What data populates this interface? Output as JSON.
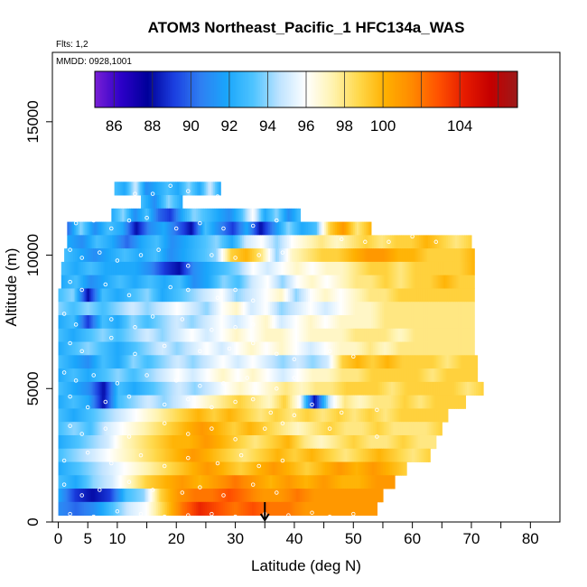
{
  "chart_data": {
    "type": "heatmap",
    "title": "ATOM3 Northeast_Pacific_1 HFC134a_WAS",
    "flights_label": "Flts: 1,2",
    "dates_label": "MMDD: 0928,1001",
    "xlabel": "Latitude (deg N)",
    "ylabel": "Altitude (m)",
    "xlim": [
      -1,
      85
    ],
    "ylim": [
      0,
      17600
    ],
    "x_ticks": [
      0,
      5,
      10,
      20,
      30,
      40,
      50,
      60,
      70,
      80
    ],
    "x_minor_ticks": [
      15,
      25,
      35,
      45,
      55,
      65,
      75
    ],
    "y_ticks": [
      0,
      5000,
      10000,
      15000
    ],
    "colorbar": {
      "min": 85,
      "max": 107,
      "tick_values": [
        86,
        88,
        90,
        92,
        94,
        96,
        98,
        100,
        104
      ],
      "colors": [
        "#7a1fd6",
        "#2c00c8",
        "#00009a",
        "#1b3fe0",
        "#2f7ff2",
        "#1aa6fb",
        "#4fc4ff",
        "#bfe3ff",
        "#ffffff",
        "#fff3b0",
        "#ffd84a",
        "#ffb000",
        "#ff8a00",
        "#ff5200",
        "#e61b00",
        "#c40000",
        "#9c1b1b"
      ]
    },
    "flight_track_arrow_lat": 35,
    "altitude_bands": [
      {
        "alt": 12500,
        "lat_min": 9.5,
        "lat_max": 27.5,
        "values": [
          93,
          92,
          95,
          91,
          92,
          93,
          92,
          94,
          92,
          95,
          92
        ]
      },
      {
        "alt": 12000,
        "lat_min": 14,
        "lat_max": 21,
        "values": [
          93,
          91,
          94,
          92
        ]
      },
      {
        "alt": 11500,
        "lat_min": 9,
        "lat_max": 41,
        "values": [
          92,
          94,
          91,
          93,
          90,
          89,
          92,
          94,
          93,
          92,
          91,
          93,
          96,
          92,
          94,
          91,
          93
        ]
      },
      {
        "alt": 11000,
        "lat_min": 1.5,
        "lat_max": 53,
        "values": [
          90,
          94,
          91,
          93,
          92,
          88,
          91,
          92,
          90,
          88,
          93,
          91,
          89,
          92,
          88,
          91,
          94,
          92,
          93,
          99,
          101,
          98,
          100
        ]
      },
      {
        "alt": 10500,
        "lat_min": 1.5,
        "lat_max": 70,
        "values": [
          92,
          91,
          93,
          92,
          90,
          92,
          93,
          91,
          92,
          93,
          94,
          92,
          95,
          96,
          94,
          96,
          97,
          98,
          97,
          98,
          99,
          98,
          99,
          99,
          100,
          99,
          98,
          99
        ]
      },
      {
        "alt": 10000,
        "lat_min": 1,
        "lat_max": 70.5,
        "values": [
          93,
          92,
          91,
          92,
          93,
          92,
          93,
          91,
          92,
          93,
          94,
          99,
          100,
          98,
          94,
          97,
          98,
          99,
          99,
          100,
          101,
          101,
          100,
          100,
          99,
          99,
          99,
          100
        ]
      },
      {
        "alt": 9500,
        "lat_min": 0.5,
        "lat_max": 70.5,
        "values": [
          93,
          92,
          93,
          92,
          92,
          92,
          91,
          89,
          88,
          91,
          92,
          93,
          94,
          96,
          95,
          96,
          97,
          96,
          97,
          97,
          98,
          99,
          99,
          98,
          99,
          99,
          99,
          99,
          100
        ]
      },
      {
        "alt": 9000,
        "lat_min": 0.5,
        "lat_max": 70.5,
        "values": [
          92,
          93,
          91,
          92,
          93,
          92,
          93,
          92,
          93,
          91,
          92,
          94,
          93,
          95,
          96,
          94,
          96,
          97,
          96,
          97,
          98,
          98,
          99,
          98,
          99,
          99,
          100,
          99,
          99
        ]
      },
      {
        "alt": 8500,
        "lat_min": 0,
        "lat_max": 70.5,
        "values": [
          93,
          94,
          88,
          93,
          92,
          93,
          94,
          92,
          93,
          94,
          95,
          96,
          94,
          95,
          96,
          97,
          94,
          96,
          97,
          96,
          97,
          98,
          98,
          99,
          99,
          99,
          99,
          99,
          99
        ]
      },
      {
        "alt": 8000,
        "lat_min": 0,
        "lat_max": 70.5,
        "values": [
          94,
          93,
          94,
          93,
          94,
          95,
          94,
          95,
          96,
          95,
          94,
          96,
          97,
          95,
          96,
          94,
          95,
          96,
          95,
          96,
          97,
          97,
          98,
          98,
          98,
          98,
          98,
          98,
          98
        ]
      },
      {
        "alt": 7500,
        "lat_min": 0,
        "lat_max": 70.5,
        "values": [
          92,
          93,
          89,
          93,
          92,
          94,
          93,
          94,
          95,
          94,
          95,
          96,
          95,
          96,
          97,
          95,
          96,
          97,
          96,
          97,
          97,
          97,
          98,
          98,
          98,
          98,
          98,
          98,
          98
        ]
      },
      {
        "alt": 7000,
        "lat_min": 0,
        "lat_max": 70.5,
        "values": [
          93,
          92,
          93,
          94,
          93,
          94,
          95,
          94,
          95,
          96,
          95,
          96,
          97,
          96,
          97,
          97,
          96,
          97,
          97,
          97,
          98,
          98,
          98,
          97,
          98,
          98,
          98,
          98,
          98
        ]
      },
      {
        "alt": 6500,
        "lat_min": 0,
        "lat_max": 70.5,
        "values": [
          92,
          93,
          94,
          93,
          92,
          93,
          94,
          95,
          94,
          95,
          96,
          95,
          96,
          97,
          96,
          97,
          96,
          95,
          96,
          97,
          97,
          98,
          97,
          98,
          98,
          98,
          98,
          98,
          98
        ]
      },
      {
        "alt": 6000,
        "lat_min": 0,
        "lat_max": 71,
        "values": [
          93,
          92,
          91,
          93,
          92,
          94,
          93,
          94,
          95,
          94,
          95,
          96,
          95,
          96,
          95,
          94,
          95,
          94,
          95,
          99,
          100,
          99,
          100,
          99,
          99,
          99,
          98,
          99,
          99
        ]
      },
      {
        "alt": 5500,
        "lat_min": 0,
        "lat_max": 71,
        "values": [
          92,
          93,
          92,
          93,
          94,
          93,
          94,
          95,
          96,
          95,
          96,
          97,
          96,
          97,
          96,
          95,
          96,
          97,
          97,
          98,
          98,
          99,
          99,
          99,
          99,
          98,
          99,
          99,
          99
        ]
      },
      {
        "alt": 5000,
        "lat_min": 0,
        "lat_max": 72,
        "values": [
          93,
          92,
          91,
          88,
          93,
          92,
          93,
          94,
          95,
          94,
          95,
          96,
          97,
          96,
          97,
          98,
          97,
          98,
          98,
          99,
          99,
          99,
          98,
          99,
          99,
          99,
          99,
          98,
          99
        ]
      },
      {
        "alt": 4500,
        "lat_min": 0,
        "lat_max": 69,
        "values": [
          92,
          93,
          92,
          88,
          93,
          94,
          95,
          94,
          95,
          96,
          97,
          98,
          99,
          98,
          97,
          99,
          96,
          88,
          95,
          98,
          97,
          98,
          98,
          99,
          98,
          99,
          99,
          99
        ]
      },
      {
        "alt": 4000,
        "lat_min": 0,
        "lat_max": 66,
        "values": [
          93,
          92,
          93,
          94,
          95,
          96,
          97,
          98,
          99,
          100,
          99,
          100,
          99,
          98,
          99,
          98,
          99,
          98,
          99,
          98,
          99,
          98,
          99,
          99,
          99,
          99
        ]
      },
      {
        "alt": 3500,
        "lat_min": 0,
        "lat_max": 65,
        "values": [
          93,
          94,
          93,
          95,
          96,
          97,
          98,
          99,
          100,
          101,
          100,
          99,
          100,
          99,
          98,
          97,
          98,
          99,
          98,
          98,
          99,
          98,
          98,
          98,
          99
        ]
      },
      {
        "alt": 3000,
        "lat_min": 0,
        "lat_max": 64,
        "values": [
          92,
          93,
          94,
          95,
          97,
          98,
          99,
          100,
          100,
          101,
          100,
          99,
          98,
          99,
          100,
          98,
          97,
          98,
          99,
          98,
          98,
          99,
          98,
          98
        ]
      },
      {
        "alt": 2500,
        "lat_min": 0,
        "lat_max": 63,
        "values": [
          93,
          94,
          95,
          96,
          97,
          98,
          99,
          100,
          101,
          100,
          99,
          98,
          99,
          100,
          99,
          100,
          99,
          98,
          99,
          100,
          99,
          98,
          99
        ]
      },
      {
        "alt": 2000,
        "lat_min": 0,
        "lat_max": 59,
        "values": [
          92,
          93,
          94,
          95,
          96,
          97,
          98,
          99,
          100,
          101,
          100,
          99,
          100,
          101,
          100,
          99,
          100,
          101,
          100,
          101,
          100,
          99
        ]
      },
      {
        "alt": 1500,
        "lat_min": 0,
        "lat_max": 57,
        "values": [
          93,
          92,
          94,
          95,
          97,
          99,
          100,
          101,
          100,
          101,
          102,
          101,
          100,
          101,
          100,
          101,
          100,
          100,
          101,
          101
        ]
      },
      {
        "alt": 1000,
        "lat_min": 0,
        "lat_max": 55,
        "values": [
          92,
          89,
          88,
          89,
          93,
          94,
          99,
          101,
          102,
          102,
          103,
          102,
          101,
          101,
          102,
          101,
          101,
          101,
          101,
          101
        ]
      },
      {
        "alt": 500,
        "lat_min": 0,
        "lat_max": 54,
        "values": [
          91,
          90,
          91,
          93,
          95,
          96,
          99,
          102,
          104,
          103,
          102,
          103,
          102,
          102,
          101,
          101,
          101,
          101,
          101
        ]
      }
    ],
    "sample_points": [
      [
        13,
        12300
      ],
      [
        16,
        12300
      ],
      [
        19,
        12600
      ],
      [
        22,
        12400
      ],
      [
        27,
        12200
      ],
      [
        31,
        12300
      ],
      [
        35,
        12100
      ],
      [
        3,
        11200
      ],
      [
        6,
        11300
      ],
      [
        9,
        11000
      ],
      [
        12,
        11300
      ],
      [
        15,
        11400
      ],
      [
        20,
        11000
      ],
      [
        24,
        11200
      ],
      [
        28,
        11000
      ],
      [
        33,
        11100
      ],
      [
        37,
        11300
      ],
      [
        48,
        10600
      ],
      [
        52,
        10500
      ],
      [
        56,
        10500
      ],
      [
        60,
        10700
      ],
      [
        64,
        10500
      ],
      [
        2,
        10200
      ],
      [
        4,
        9900
      ],
      [
        7,
        10100
      ],
      [
        10,
        9800
      ],
      [
        14,
        10000
      ],
      [
        17,
        10200
      ],
      [
        22,
        9600
      ],
      [
        26,
        10000
      ],
      [
        30,
        9900
      ],
      [
        34,
        10000
      ],
      [
        38,
        10100
      ],
      [
        2,
        9000
      ],
      [
        4,
        8700
      ],
      [
        8,
        8900
      ],
      [
        12,
        8500
      ],
      [
        19,
        8800
      ],
      [
        22,
        8700
      ],
      [
        27,
        8400
      ],
      [
        30,
        8700
      ],
      [
        33,
        8300
      ],
      [
        1,
        7800
      ],
      [
        3,
        7400
      ],
      [
        9,
        7600
      ],
      [
        13,
        7300
      ],
      [
        16,
        7700
      ],
      [
        21,
        7600
      ],
      [
        26,
        7200
      ],
      [
        30,
        7300
      ],
      [
        33,
        7400
      ],
      [
        2,
        6700
      ],
      [
        4,
        6400
      ],
      [
        9,
        6900
      ],
      [
        13,
        6300
      ],
      [
        18,
        6600
      ],
      [
        24,
        6400
      ],
      [
        29,
        6500
      ],
      [
        33,
        6700
      ],
      [
        37,
        6300
      ],
      [
        40,
        6100
      ],
      [
        46,
        6400
      ],
      [
        50,
        6200
      ],
      [
        1,
        5600
      ],
      [
        3,
        5300
      ],
      [
        6,
        5500
      ],
      [
        10,
        5200
      ],
      [
        15,
        5500
      ],
      [
        20,
        5300
      ],
      [
        24,
        5100
      ],
      [
        28,
        5200
      ],
      [
        32,
        5400
      ],
      [
        37,
        5000
      ],
      [
        40,
        5400
      ],
      [
        2,
        4700
      ],
      [
        5,
        4300
      ],
      [
        8,
        4500
      ],
      [
        12,
        4700
      ],
      [
        18,
        4400
      ],
      [
        22,
        4600
      ],
      [
        26,
        4300
      ],
      [
        30,
        4500
      ],
      [
        33,
        4600
      ],
      [
        36,
        4100
      ],
      [
        40,
        4000
      ],
      [
        43,
        4400
      ],
      [
        48,
        4100
      ],
      [
        54,
        4200
      ],
      [
        2,
        3600
      ],
      [
        4,
        3300
      ],
      [
        8,
        3500
      ],
      [
        12,
        3200
      ],
      [
        18,
        3700
      ],
      [
        22,
        3300
      ],
      [
        26,
        3500
      ],
      [
        30,
        3100
      ],
      [
        35,
        3500
      ],
      [
        38,
        3700
      ],
      [
        46,
        3500
      ],
      [
        54,
        3200
      ],
      [
        1,
        2300
      ],
      [
        5,
        2600
      ],
      [
        9,
        2200
      ],
      [
        14,
        2500
      ],
      [
        18,
        2100
      ],
      [
        22,
        2400
      ],
      [
        27,
        2200
      ],
      [
        31,
        2500
      ],
      [
        34,
        2100
      ],
      [
        38,
        2300
      ],
      [
        1,
        1400
      ],
      [
        4,
        1000
      ],
      [
        7,
        1200
      ],
      [
        12,
        1500
      ],
      [
        16,
        1200
      ],
      [
        21,
        1100
      ],
      [
        24,
        1300
      ],
      [
        28,
        1000
      ],
      [
        33,
        1400
      ],
      [
        37,
        1100
      ],
      [
        2,
        300
      ],
      [
        6,
        200
      ],
      [
        10,
        400
      ],
      [
        14,
        300
      ],
      [
        18,
        200
      ],
      [
        22,
        250
      ],
      [
        26,
        300
      ],
      [
        30,
        200
      ],
      [
        35,
        300
      ],
      [
        39,
        250
      ],
      [
        43,
        350
      ],
      [
        46,
        200
      ],
      [
        50,
        300
      ]
    ]
  }
}
